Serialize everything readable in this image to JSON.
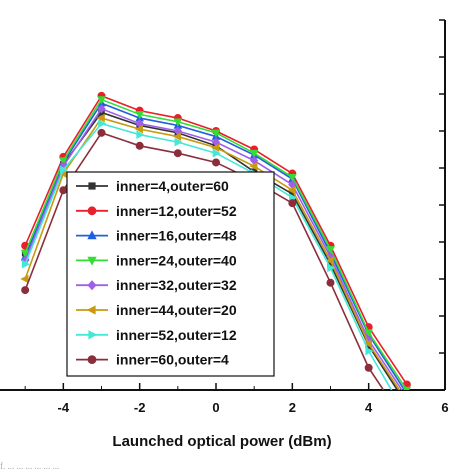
{
  "chart_data": {
    "type": "line",
    "xlabel": "Launched optical power (dBm)",
    "ylabel": "",
    "xlim": [
      -6,
      6
    ],
    "ylim": [
      0,
      10
    ],
    "x_ticks": [
      -4,
      -2,
      0,
      2,
      4,
      6
    ],
    "grid": false,
    "legend_position": "bottom-left",
    "x": [
      -5,
      -4,
      -3,
      -2,
      -1,
      0,
      1,
      2,
      3,
      4,
      5
    ],
    "series": [
      {
        "name": "inner=4,outer=60",
        "color": "#333333",
        "marker": "square",
        "values": [
          3.7,
          6.1,
          7.5,
          7.15,
          6.95,
          6.6,
          5.9,
          5.3,
          3.4,
          1.2,
          -0.4
        ]
      },
      {
        "name": "inner=12,outer=52",
        "color": "#e8202b",
        "marker": "circle",
        "values": [
          3.9,
          6.3,
          7.95,
          7.55,
          7.35,
          7.0,
          6.5,
          5.85,
          3.9,
          1.7,
          0.15
        ]
      },
      {
        "name": "inner=16,outer=48",
        "color": "#2060e0",
        "marker": "triangle-up",
        "values": [
          3.6,
          6.15,
          7.75,
          7.35,
          7.15,
          6.85,
          6.35,
          5.7,
          3.7,
          1.5,
          -0.1
        ]
      },
      {
        "name": "inner=24,outer=40",
        "color": "#33dd33",
        "marker": "triangle-down",
        "values": [
          3.7,
          6.2,
          7.85,
          7.45,
          7.25,
          6.95,
          6.4,
          5.75,
          3.8,
          1.55,
          0.0
        ]
      },
      {
        "name": "inner=32,outer=32",
        "color": "#9f5fe8",
        "marker": "diamond",
        "values": [
          3.5,
          6.05,
          7.6,
          7.2,
          7.0,
          6.7,
          6.2,
          5.55,
          3.6,
          1.35,
          -0.2
        ]
      },
      {
        "name": "inner=44,outer=20",
        "color": "#c99a10",
        "marker": "triangle-left",
        "values": [
          3.0,
          5.85,
          7.35,
          7.05,
          6.85,
          6.55,
          6.05,
          5.4,
          3.5,
          1.25,
          -0.3
        ]
      },
      {
        "name": "inner=52,outer=12",
        "color": "#44e8d8",
        "marker": "triangle-right",
        "values": [
          3.4,
          5.95,
          7.2,
          6.9,
          6.7,
          6.4,
          5.85,
          5.2,
          3.3,
          1.05,
          -0.7
        ]
      },
      {
        "name": "inner=60,outer=4",
        "color": "#8b2e3b",
        "marker": "circle",
        "values": [
          2.7,
          5.4,
          6.95,
          6.6,
          6.4,
          6.15,
          5.65,
          5.05,
          2.9,
          0.6,
          -0.95
        ]
      }
    ]
  },
  "caption": "f. ... ... ... ... ... ..."
}
